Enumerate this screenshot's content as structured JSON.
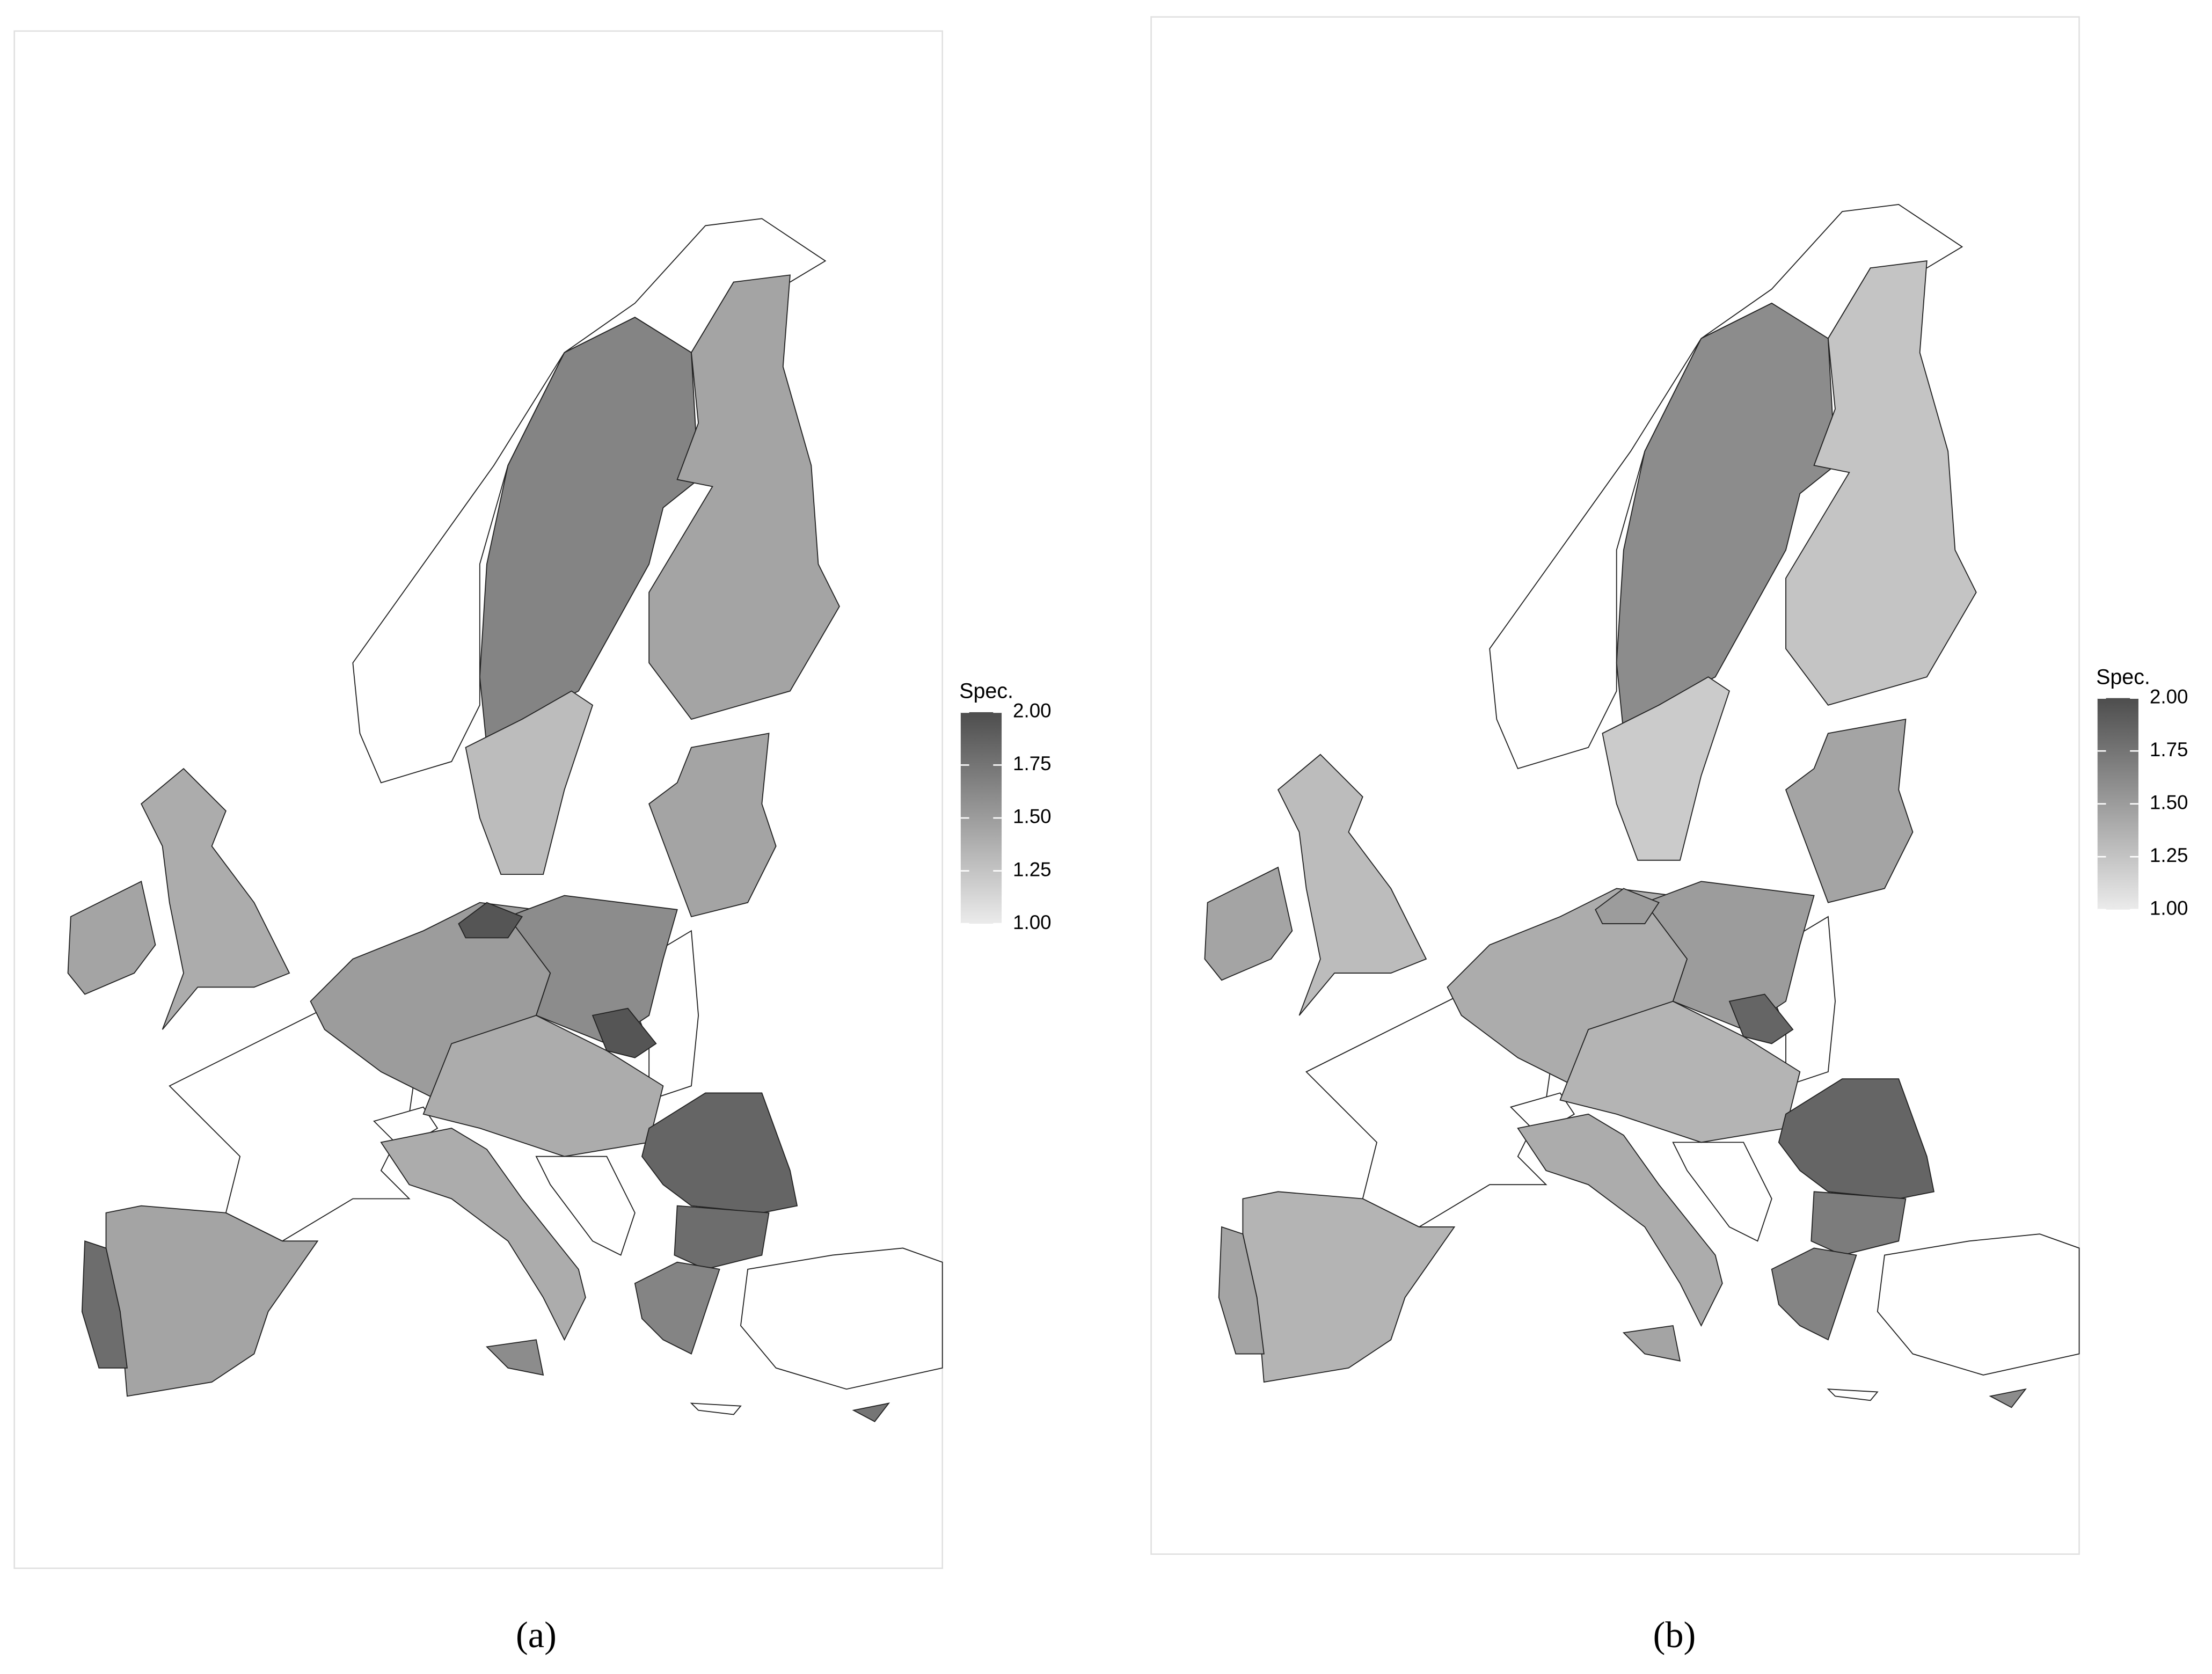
{
  "legend_title": "Spec.",
  "color_low": "#ebebeb",
  "color_high": "#4d4d4d",
  "lim": [
    1,
    2
  ],
  "ticks": [
    {
      "value": 2,
      "label": "2.00"
    },
    {
      "value": 1.75,
      "label": "1.75"
    },
    {
      "value": 1.5,
      "label": "1.50"
    },
    {
      "value": 1.25,
      "label": "1.25"
    },
    {
      "value": 1,
      "label": "1.00"
    }
  ],
  "panels": [
    {
      "label": "(a)",
      "values": [
        1.65,
        1.3,
        1.45,
        1.45,
        1.4,
        1.45,
        1.45,
        1.8,
        1.5,
        1.6,
        1.95,
        1.95,
        1.4,
        1.4,
        1.6,
        1.85,
        1.8,
        1.65,
        1.75
      ]
    },
    {
      "label": "(b)",
      "values": [
        1.6,
        1.2,
        1.25,
        1.45,
        1.3,
        1.45,
        1.35,
        1.45,
        1.4,
        1.5,
        1.85,
        1.5,
        1.35,
        1.4,
        1.45,
        1.85,
        1.7,
        1.65,
        1.6
      ]
    }
  ]
}
